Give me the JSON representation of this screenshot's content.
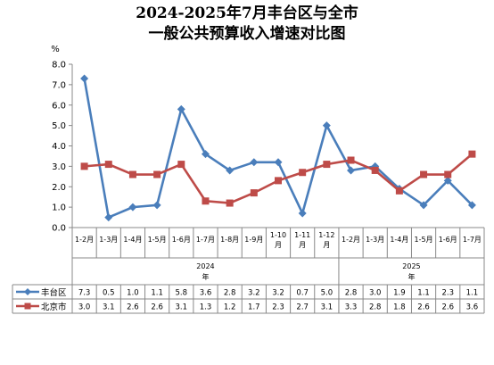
{
  "chart_data": {
    "type": "line",
    "title_line1": "2024-2025年7月丰台区与全市",
    "title_line2": "一般公共预算收入增速对比图",
    "ylabel": "%",
    "ylim": [
      0,
      8
    ],
    "yticks": [
      "0.0",
      "1.0",
      "2.0",
      "3.0",
      "4.0",
      "5.0",
      "6.0",
      "7.0",
      "8.0"
    ],
    "categories": [
      [
        "1-2月"
      ],
      [
        "1-3月"
      ],
      [
        "1-4月"
      ],
      [
        "1-5月"
      ],
      [
        "1-6月"
      ],
      [
        "1-7月"
      ],
      [
        "1-8月"
      ],
      [
        "1-9月"
      ],
      [
        "1-10",
        "月"
      ],
      [
        "1-11",
        "月"
      ],
      [
        "1-12",
        "月"
      ],
      [
        "1-2月"
      ],
      [
        "1-3月"
      ],
      [
        "1-4月"
      ],
      [
        "1-5月"
      ],
      [
        "1-6月"
      ],
      [
        "1-7月"
      ]
    ],
    "groups": [
      {
        "year": "2024",
        "suffix": "年",
        "start": 0,
        "end": 10
      },
      {
        "year": "2025",
        "suffix": "年",
        "start": 11,
        "end": 16
      }
    ],
    "series": [
      {
        "name": "丰台区",
        "color": "#4a7ebb",
        "marker": "diamond",
        "values": [
          7.3,
          0.5,
          1.0,
          1.1,
          5.8,
          3.6,
          2.8,
          3.2,
          3.2,
          0.7,
          5.0,
          2.8,
          3.0,
          1.9,
          1.1,
          2.3,
          1.1
        ],
        "labels": [
          "7.3",
          "0.5",
          "1.0",
          "1.1",
          "5.8",
          "3.6",
          "2.8",
          "3.2",
          "3.2",
          "0.7",
          "5.0",
          "2.8",
          "3.0",
          "1.9",
          "1.1",
          "2.3",
          "1.1"
        ]
      },
      {
        "name": "北京市",
        "color": "#be4b48",
        "marker": "square",
        "values": [
          3.0,
          3.1,
          2.6,
          2.6,
          3.1,
          1.3,
          1.2,
          1.7,
          2.3,
          2.7,
          3.1,
          3.3,
          2.8,
          1.8,
          2.6,
          2.6,
          3.6
        ],
        "labels": [
          "3.0",
          "3.1",
          "2.6",
          "2.6",
          "3.1",
          "1.3",
          "1.2",
          "1.7",
          "2.3",
          "2.7",
          "3.1",
          "3.3",
          "2.8",
          "1.8",
          "2.6",
          "2.6",
          "3.6"
        ]
      }
    ],
    "grid": false,
    "legend": "data-table-rows"
  }
}
